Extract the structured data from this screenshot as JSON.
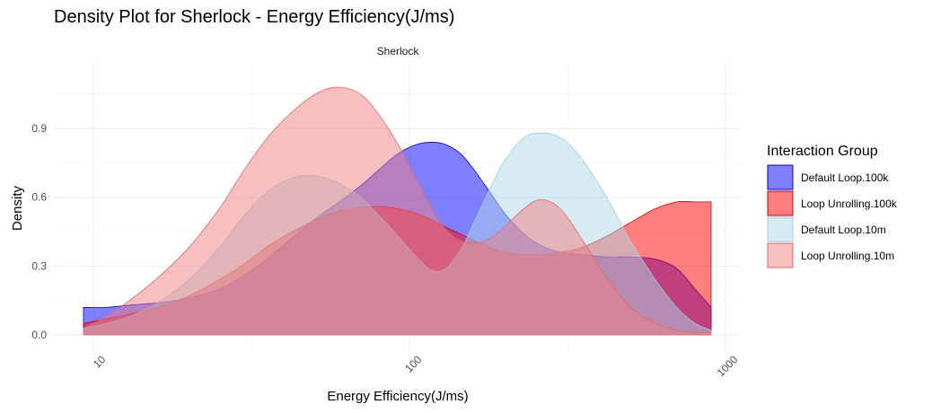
{
  "chart_data": {
    "type": "area",
    "title": "Density Plot for Sherlock - Energy Efficiency(J/ms)",
    "facet": "Sherlock",
    "xlabel": "Energy Efficiency(J/ms)",
    "ylabel": "Density",
    "x_scale": "log10",
    "xlim": [
      9.3,
      900
    ],
    "ylim": [
      0,
      1.1
    ],
    "x_ticks": [
      10,
      100,
      1000
    ],
    "y_ticks": [
      0.0,
      0.3,
      0.6,
      0.9
    ],
    "x_tick_labels": [
      "10",
      "100",
      "1000"
    ],
    "y_tick_labels": [
      "0.0",
      "0.3",
      "0.6",
      "0.9"
    ],
    "grid": true,
    "legend_title": "Interaction Group",
    "legend_position": "right",
    "series": [
      {
        "name": "Default Loop.100k",
        "fill": "#0000ff",
        "stroke": "#0000cc",
        "opacity": 0.5,
        "x": [
          9.3,
          11,
          13,
          16,
          20,
          25,
          30,
          36,
          44,
          52,
          60,
          70,
          80,
          92,
          105,
          118,
          130,
          145,
          160,
          180,
          200,
          230,
          260,
          300,
          350,
          420,
          500,
          600,
          700,
          800,
          900
        ],
        "y": [
          0.12,
          0.12,
          0.13,
          0.14,
          0.16,
          0.2,
          0.26,
          0.34,
          0.44,
          0.52,
          0.58,
          0.65,
          0.72,
          0.79,
          0.83,
          0.84,
          0.83,
          0.79,
          0.72,
          0.62,
          0.53,
          0.44,
          0.39,
          0.36,
          0.35,
          0.34,
          0.34,
          0.33,
          0.29,
          0.2,
          0.12
        ]
      },
      {
        "name": "Loop Unrolling.100k",
        "fill": "#ff0000",
        "stroke": "#cc0000",
        "opacity": 0.5,
        "x": [
          9.3,
          11,
          13,
          16,
          20,
          25,
          30,
          36,
          44,
          52,
          60,
          70,
          80,
          92,
          105,
          118,
          130,
          145,
          160,
          180,
          200,
          230,
          260,
          300,
          350,
          420,
          500,
          600,
          700,
          800,
          900
        ],
        "y": [
          0.05,
          0.07,
          0.09,
          0.12,
          0.17,
          0.24,
          0.31,
          0.39,
          0.46,
          0.51,
          0.54,
          0.555,
          0.56,
          0.55,
          0.53,
          0.5,
          0.47,
          0.44,
          0.41,
          0.38,
          0.36,
          0.35,
          0.35,
          0.36,
          0.38,
          0.43,
          0.49,
          0.55,
          0.58,
          0.58,
          0.58
        ]
      },
      {
        "name": "Default Loop.10m",
        "fill": "#add8e6",
        "stroke": "#9ccfe0",
        "opacity": 0.5,
        "x": [
          9.3,
          11,
          13,
          16,
          20,
          25,
          30,
          36,
          44,
          52,
          60,
          70,
          80,
          92,
          105,
          118,
          130,
          145,
          160,
          180,
          200,
          230,
          260,
          300,
          350,
          420,
          500,
          600,
          700,
          800,
          900
        ],
        "y": [
          0.03,
          0.05,
          0.08,
          0.14,
          0.24,
          0.38,
          0.52,
          0.63,
          0.69,
          0.69,
          0.66,
          0.6,
          0.52,
          0.43,
          0.34,
          0.28,
          0.29,
          0.37,
          0.49,
          0.64,
          0.76,
          0.86,
          0.88,
          0.86,
          0.77,
          0.6,
          0.41,
          0.24,
          0.12,
          0.05,
          0.02
        ]
      },
      {
        "name": "Loop Unrolling.10m",
        "fill": "#f08080",
        "stroke": "#e06868",
        "opacity": 0.5,
        "x": [
          9.3,
          11,
          13,
          16,
          20,
          25,
          30,
          36,
          44,
          52,
          60,
          70,
          80,
          92,
          105,
          118,
          130,
          145,
          160,
          180,
          200,
          230,
          260,
          300,
          350,
          420,
          500,
          600,
          700,
          800,
          900
        ],
        "y": [
          0.03,
          0.08,
          0.15,
          0.25,
          0.38,
          0.55,
          0.72,
          0.87,
          0.99,
          1.06,
          1.08,
          1.05,
          0.96,
          0.83,
          0.68,
          0.55,
          0.46,
          0.41,
          0.4,
          0.42,
          0.47,
          0.55,
          0.59,
          0.55,
          0.42,
          0.25,
          0.12,
          0.05,
          0.02,
          0.01,
          0.01
        ]
      }
    ]
  }
}
